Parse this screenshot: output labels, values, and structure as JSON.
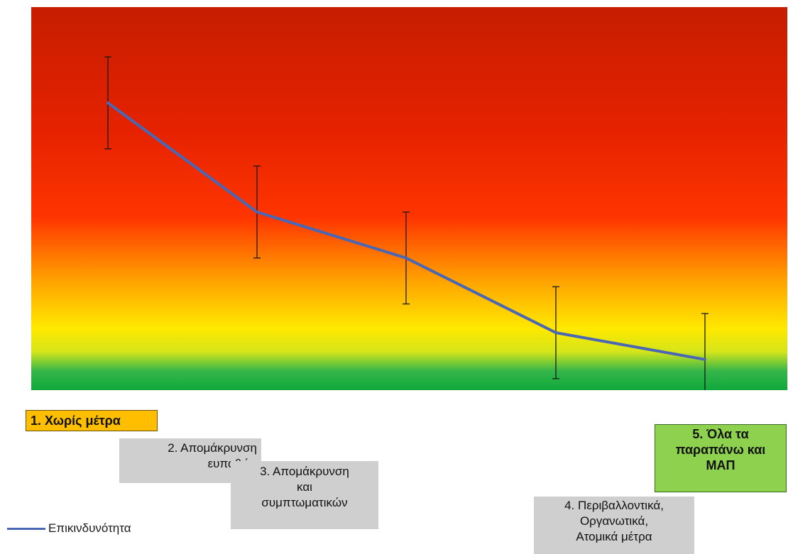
{
  "chart_data": {
    "type": "line",
    "categories": [
      "1. Χωρίς μέτρα",
      "2. Απομάκρυνση\nευπαθών",
      "3. Απομάκρυνση\nκαι\nσυμπτωματικών",
      "4. Περιβαλλοντικά,\nΟργανωτικά,\nΑτομικά μέτρα",
      "5. Όλα τα\nπαραπάνω και\nΜΑΠ"
    ],
    "series": [
      {
        "name": "Επικινδυνότητα",
        "color": "#4a67b5",
        "values": [
          0.75,
          0.465,
          0.345,
          0.15,
          0.08
        ],
        "error_low": [
          0.63,
          0.345,
          0.225,
          0.03,
          0.0
        ],
        "error_high": [
          0.87,
          0.585,
          0.465,
          0.27,
          0.2
        ]
      }
    ],
    "ylim": [
      0,
      1
    ],
    "background": "vertical gradient from dark red (top) through red-orange and yellow to green (bottom)",
    "legend": "bottom-left",
    "grid": false,
    "category_box_colors": [
      "#ffbe00",
      "#cfcfcf",
      "#cfcfcf",
      "#cfcfcf",
      "#8ed14f"
    ]
  }
}
